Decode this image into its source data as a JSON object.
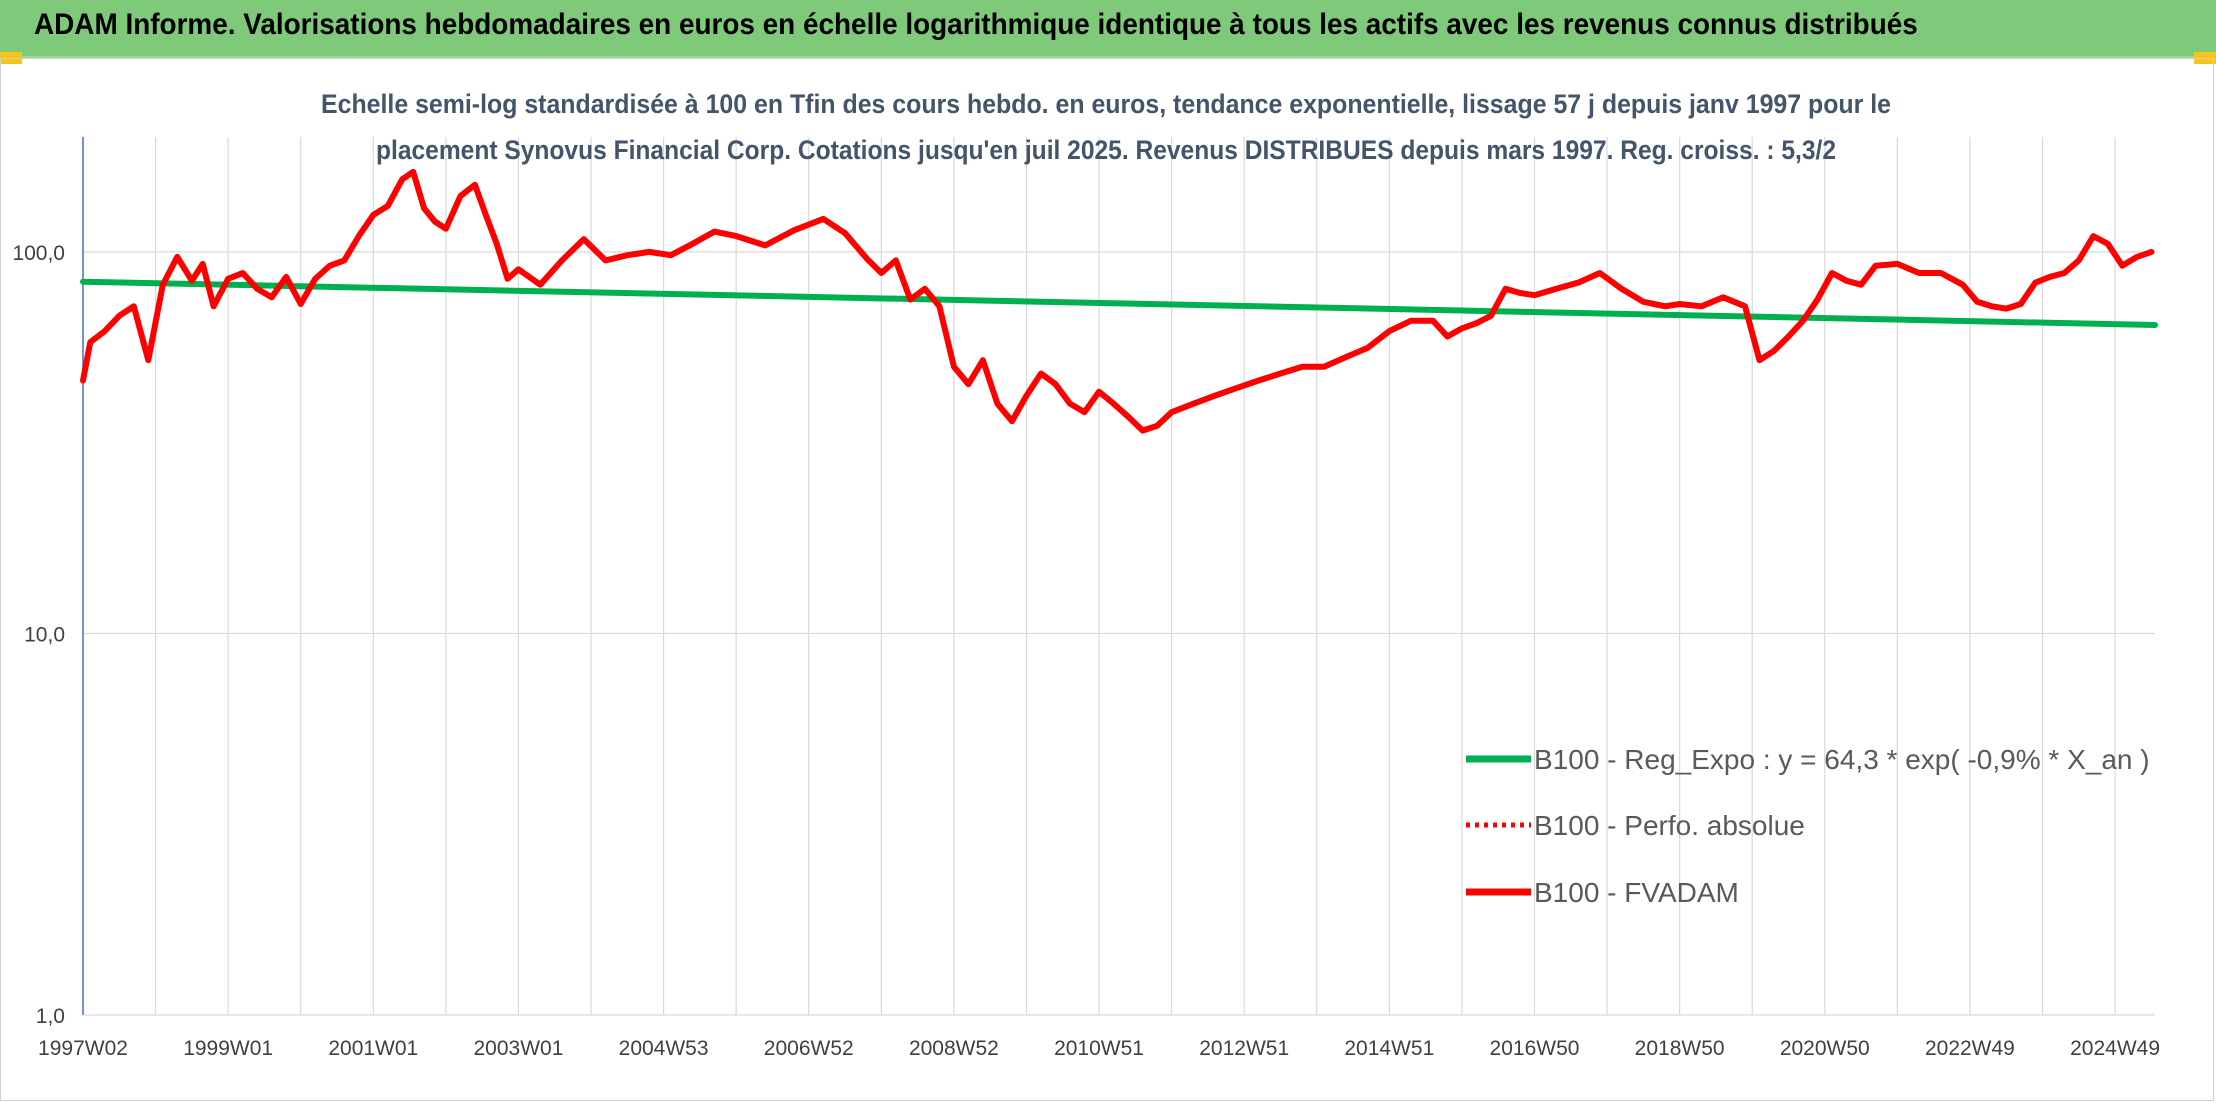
{
  "header": {
    "banner_title": "ADAM Informe. Valorisations hebdomadaires en euros en échelle logarithmique identique à tous les actifs avec les revenus connus distribués"
  },
  "colors": {
    "banner_bg": "#7fc97a",
    "trend": "#00b050",
    "fvadam": "#ff0000",
    "perfo": "#ff0000",
    "grid": "#d9d9d9",
    "axis_line": "#4472c4",
    "title": "#44546a",
    "accent_tab": "#f5c518"
  },
  "chart_data": {
    "type": "line",
    "title_lines": [
      "Echelle semi-log standardisée à 100 en Tfin des cours hebdo. en euros, tendance exponentielle, lissage 57 j depuis janv 1997 pour le",
      "placement Synovus Financial Corp. Cotations jusqu'en juil 2025. Revenus DISTRIBUES depuis mars 1997. Reg. croiss. : 5,3/2"
    ],
    "y_scale": "log",
    "ylim": [
      1,
      200
    ],
    "y_ticks": [
      {
        "value": 1,
        "label": "1,0"
      },
      {
        "value": 10,
        "label": "10,0"
      },
      {
        "value": 100,
        "label": "100,0"
      }
    ],
    "xlim": [
      1997.0,
      2025.55
    ],
    "x_ticks": [
      {
        "value": 1997.0,
        "label": "1997W02"
      },
      {
        "value": 1999.0,
        "label": "1999W01"
      },
      {
        "value": 2001.0,
        "label": "2001W01"
      },
      {
        "value": 2003.0,
        "label": "2003W01"
      },
      {
        "value": 2005.0,
        "label": "2004W53"
      },
      {
        "value": 2007.0,
        "label": "2006W52"
      },
      {
        "value": 2009.0,
        "label": "2008W52"
      },
      {
        "value": 2011.0,
        "label": "2010W51"
      },
      {
        "value": 2013.0,
        "label": "2012W51"
      },
      {
        "value": 2015.0,
        "label": "2014W51"
      },
      {
        "value": 2017.0,
        "label": "2016W50"
      },
      {
        "value": 2019.0,
        "label": "2018W50"
      },
      {
        "value": 2021.0,
        "label": "2020W50"
      },
      {
        "value": 2023.0,
        "label": "2022W49"
      },
      {
        "value": 2025.0,
        "label": "2024W49"
      }
    ],
    "grid": true,
    "legend_position": "bottom-right",
    "series": [
      {
        "name": "B100 - Reg_Expo : y = 64,3 * exp( -0,9% *  X_an )",
        "style": "solid-thick",
        "color": "#00b050",
        "x": [
          1997.0,
          2025.55
        ],
        "y": [
          83.5,
          64.3
        ]
      },
      {
        "name": "B100 - Perfo. absolue",
        "style": "dotted",
        "color": "#ff0000",
        "x": [],
        "y": []
      },
      {
        "name": "B100 - FVADAM",
        "style": "solid-thick",
        "color": "#ff0000",
        "x": [
          1997.0,
          1997.1,
          1997.3,
          1997.5,
          1997.7,
          1997.9,
          1998.1,
          1998.3,
          1998.5,
          1998.65,
          1998.8,
          1999.0,
          1999.2,
          1999.4,
          1999.6,
          1999.8,
          2000.0,
          2000.2,
          2000.4,
          2000.6,
          2000.8,
          2001.0,
          2001.2,
          2001.4,
          2001.55,
          2001.7,
          2001.85,
          2002.0,
          2002.2,
          2002.4,
          2002.55,
          2002.7,
          2002.85,
          2003.0,
          2003.3,
          2003.6,
          2003.9,
          2004.2,
          2004.5,
          2004.8,
          2005.1,
          2005.4,
          2005.7,
          2006.0,
          2006.4,
          2006.8,
          2007.2,
          2007.5,
          2007.8,
          2008.0,
          2008.2,
          2008.4,
          2008.6,
          2008.8,
          2009.0,
          2009.2,
          2009.4,
          2009.6,
          2009.8,
          2010.0,
          2010.2,
          2010.4,
          2010.6,
          2010.8,
          2011.0,
          2011.2,
          2011.4,
          2011.6,
          2011.8,
          2012.0,
          2012.3,
          2012.6,
          2012.9,
          2013.2,
          2013.5,
          2013.8,
          2014.1,
          2014.4,
          2014.7,
          2015.0,
          2015.3,
          2015.6,
          2015.8,
          2016.0,
          2016.2,
          2016.4,
          2016.6,
          2016.8,
          2017.0,
          2017.3,
          2017.6,
          2017.9,
          2018.2,
          2018.5,
          2018.8,
          2019.0,
          2019.3,
          2019.6,
          2019.9,
          2020.1,
          2020.3,
          2020.5,
          2020.7,
          2020.9,
          2021.1,
          2021.3,
          2021.5,
          2021.7,
          2022.0,
          2022.3,
          2022.6,
          2022.9,
          2023.1,
          2023.3,
          2023.5,
          2023.7,
          2023.9,
          2024.1,
          2024.3,
          2024.5,
          2024.7,
          2024.9,
          2025.1,
          2025.3,
          2025.5
        ],
        "y": [
          46,
          58,
          62,
          68,
          72,
          52,
          82,
          97,
          84,
          93,
          72,
          85,
          88,
          80,
          76,
          86,
          73,
          85,
          92,
          95,
          110,
          125,
          132,
          155,
          162,
          130,
          120,
          115,
          140,
          150,
          125,
          105,
          85,
          90,
          82,
          95,
          108,
          95,
          98,
          100,
          98,
          105,
          113,
          110,
          104,
          114,
          122,
          112,
          96,
          88,
          95,
          75,
          80,
          72,
          50,
          45,
          52,
          40,
          36,
          42,
          48,
          45,
          40,
          38,
          43,
          40,
          37,
          34,
          35,
          38,
          40,
          42,
          44,
          46,
          48,
          50,
          50,
          53,
          56,
          62,
          66,
          66,
          60,
          63,
          65,
          68,
          80,
          78,
          77,
          80,
          83,
          88,
          80,
          74,
          72,
          73,
          72,
          76,
          72,
          52,
          55,
          60,
          66,
          75,
          88,
          84,
          82,
          92,
          93,
          88,
          88,
          82,
          74,
          72,
          71,
          73,
          83,
          86,
          88,
          95,
          110,
          105,
          92,
          97,
          100
        ]
      }
    ]
  }
}
